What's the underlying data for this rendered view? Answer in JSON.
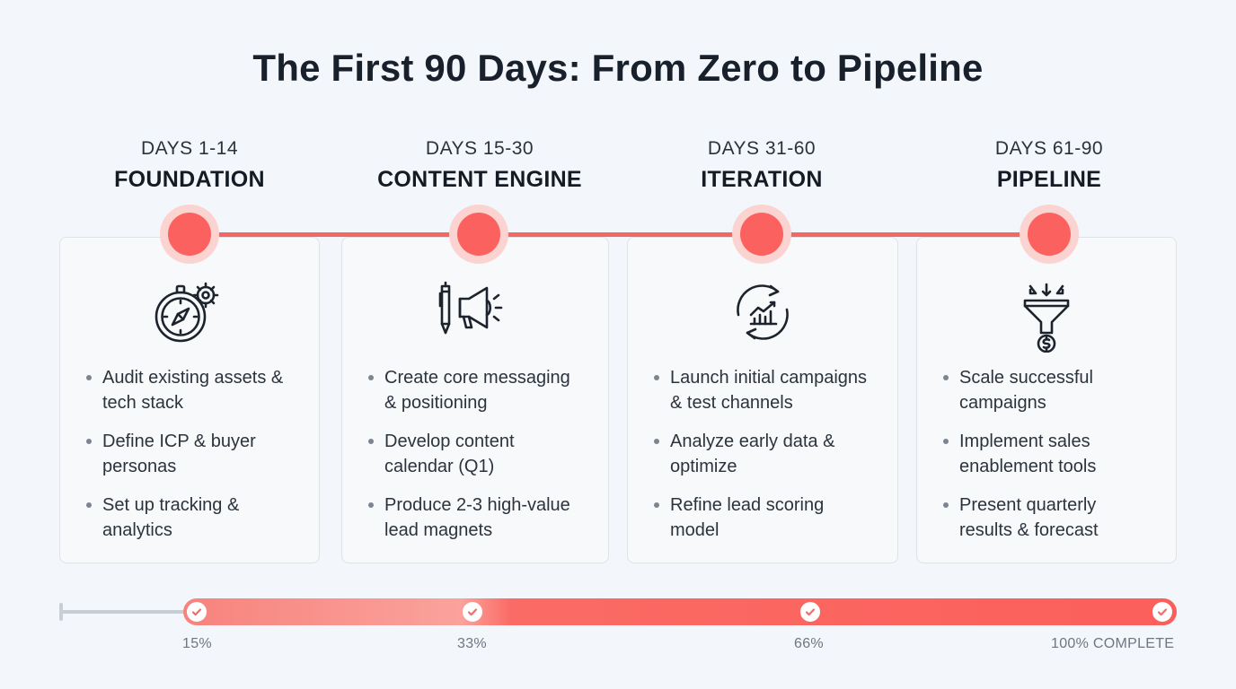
{
  "title": "The First 90 Days: From Zero to Pipeline",
  "phases": [
    {
      "days": "DAYS 1-14",
      "name": "FOUNDATION",
      "icon": "compass-gear-icon",
      "bullets": [
        {
          "l1": "Audit existing assets &",
          "l2": "tech stack"
        },
        {
          "l1": "Define ICP & buyer",
          "l2": "personas"
        },
        {
          "l1": "Set up tracking &",
          "l2": "analytics"
        }
      ]
    },
    {
      "days": "DAYS 15-30",
      "name": "CONTENT ENGINE",
      "icon": "pen-megaphone-icon",
      "bullets": [
        {
          "l1": "Create core messaging",
          "l2": "& positioning"
        },
        {
          "l1": "Develop content",
          "l2": "calendar (Q1)"
        },
        {
          "l1": "Produce 2-3 high-value",
          "l2": "lead magnets"
        }
      ]
    },
    {
      "days": "DAYS 31-60",
      "name": "ITERATION",
      "icon": "cycle-chart-icon",
      "bullets": [
        {
          "l1": "Launch initial campaigns",
          "l2": "& test channels"
        },
        {
          "l1": "Analyze early data &",
          "l2": "optimize"
        },
        {
          "l1": "Refine lead scoring",
          "l2": "model"
        }
      ]
    },
    {
      "days": "DAYS 61-90",
      "name": "PIPELINE",
      "icon": "funnel-dollar-icon",
      "bullets": [
        {
          "l1": "Scale successful",
          "l2": "campaigns"
        },
        {
          "l1": "Implement sales",
          "l2": "enablement tools"
        },
        {
          "l1": "Present quarterly",
          "l2": "results & forecast"
        }
      ]
    }
  ],
  "progress": {
    "milestones": [
      {
        "label": "15%",
        "value": 0.15
      },
      {
        "label": "33%",
        "value": 0.33
      },
      {
        "label": "66%",
        "value": 0.66
      },
      {
        "label": "100% COMPLETE",
        "value": 1.0
      }
    ]
  },
  "colors": {
    "accent": "#fb615f",
    "accent_light": "#fbd4d2",
    "text": "#17202b",
    "muted": "#6e7681",
    "card_border": "#dfe3e8"
  }
}
